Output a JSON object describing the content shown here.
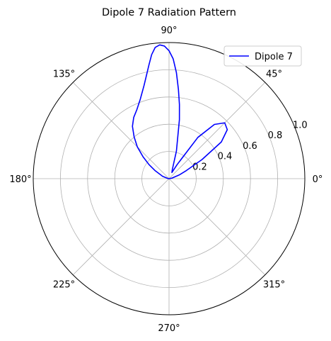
{
  "chart_data": {
    "type": "line",
    "projection": "polar",
    "title": "Dipole 7 Radiation Pattern",
    "theta_unit": "degrees",
    "angle_tick_labels": [
      "0°",
      "45°",
      "90°",
      "135°",
      "180°",
      "225°",
      "270°",
      "315°"
    ],
    "angle_ticks": [
      0,
      45,
      90,
      135,
      180,
      225,
      270,
      315
    ],
    "radial_ticks": [
      0.2,
      0.4,
      0.6,
      0.8,
      1.0
    ],
    "radial_tick_labels": [
      "0.2",
      "0.4",
      "0.6",
      "0.8",
      "1.0"
    ],
    "rlim": [
      0,
      1.0
    ],
    "grid": true,
    "legend_position": "top-right",
    "series": [
      {
        "name": "Dipole 7",
        "color": "#0000ff",
        "theta": [
          0,
          10,
          20,
          25,
          30,
          35,
          40,
          45,
          50,
          55,
          60,
          65,
          70,
          75,
          80,
          82,
          84,
          86,
          88,
          90,
          92,
          94,
          96,
          98,
          100,
          105,
          110,
          115,
          120,
          125,
          130,
          135,
          140,
          145,
          150,
          160,
          170,
          180
        ],
        "r": [
          0.0,
          0.02,
          0.08,
          0.14,
          0.28,
          0.47,
          0.56,
          0.58,
          0.52,
          0.37,
          0.12,
          0.05,
          0.07,
          0.21,
          0.44,
          0.55,
          0.66,
          0.78,
          0.88,
          0.94,
          0.975,
          0.985,
          0.97,
          0.92,
          0.85,
          0.71,
          0.62,
          0.56,
          0.52,
          0.47,
          0.4,
          0.33,
          0.25,
          0.18,
          0.12,
          0.05,
          0.01,
          0.0
        ]
      }
    ]
  }
}
